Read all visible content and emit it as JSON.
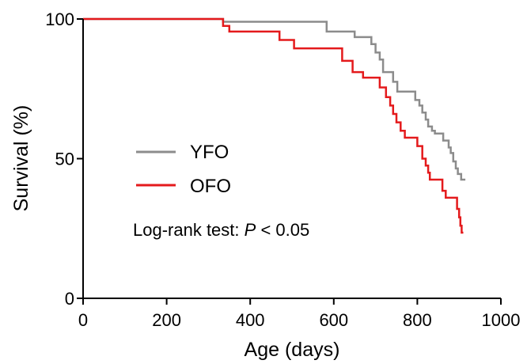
{
  "chart_data": {
    "type": "line",
    "step": true,
    "xlabel": "Age (days)",
    "ylabel": "Survival (%)",
    "xlim": [
      0,
      1000
    ],
    "ylim": [
      0,
      100
    ],
    "x_ticks": [
      0,
      200,
      400,
      600,
      800,
      1000
    ],
    "y_ticks": [
      0,
      50,
      100
    ],
    "x_tick_labels": [
      "0",
      "200",
      "400",
      "600",
      "800",
      "1000"
    ],
    "y_tick_labels": [
      "0",
      "50",
      "100"
    ],
    "grid": false,
    "legend_position": "middle-left",
    "annotation": {
      "prefix": "Log-rank test: ",
      "italic": "P",
      "suffix": " < 0.05"
    },
    "series": [
      {
        "name": "YFO",
        "color": "#8c8c8c",
        "points": [
          [
            0,
            100
          ],
          [
            335,
            100
          ],
          [
            335,
            99
          ],
          [
            583,
            99
          ],
          [
            583,
            95.5
          ],
          [
            650,
            95.5
          ],
          [
            650,
            93.5
          ],
          [
            690,
            93.5
          ],
          [
            690,
            91
          ],
          [
            700,
            91
          ],
          [
            700,
            88
          ],
          [
            710,
            88
          ],
          [
            710,
            85.5
          ],
          [
            718,
            85.5
          ],
          [
            718,
            81
          ],
          [
            742,
            81
          ],
          [
            742,
            77.5
          ],
          [
            752,
            77.5
          ],
          [
            752,
            74
          ],
          [
            795,
            74
          ],
          [
            795,
            71
          ],
          [
            805,
            71
          ],
          [
            805,
            69
          ],
          [
            812,
            69
          ],
          [
            812,
            66.5
          ],
          [
            820,
            66.5
          ],
          [
            820,
            64
          ],
          [
            826,
            64
          ],
          [
            826,
            61.5
          ],
          [
            835,
            61.5
          ],
          [
            835,
            60
          ],
          [
            842,
            60
          ],
          [
            842,
            59
          ],
          [
            862,
            59
          ],
          [
            862,
            56.5
          ],
          [
            875,
            56.5
          ],
          [
            875,
            54
          ],
          [
            880,
            54
          ],
          [
            880,
            52
          ],
          [
            886,
            52
          ],
          [
            886,
            49
          ],
          [
            892,
            49
          ],
          [
            892,
            46.5
          ],
          [
            897,
            46.5
          ],
          [
            897,
            44.5
          ],
          [
            905,
            44.5
          ],
          [
            905,
            42.5
          ],
          [
            915,
            42.5
          ]
        ]
      },
      {
        "name": "OFO",
        "color": "#e41a1c",
        "points": [
          [
            0,
            100
          ],
          [
            335,
            100
          ],
          [
            335,
            97.5
          ],
          [
            350,
            97.5
          ],
          [
            350,
            95.5
          ],
          [
            470,
            95.5
          ],
          [
            470,
            92.5
          ],
          [
            505,
            92.5
          ],
          [
            505,
            89.5
          ],
          [
            620,
            89.5
          ],
          [
            620,
            85
          ],
          [
            645,
            85
          ],
          [
            645,
            81
          ],
          [
            670,
            81
          ],
          [
            670,
            79
          ],
          [
            710,
            79
          ],
          [
            710,
            75.5
          ],
          [
            725,
            75.5
          ],
          [
            725,
            72
          ],
          [
            735,
            72
          ],
          [
            735,
            69
          ],
          [
            742,
            69
          ],
          [
            742,
            66
          ],
          [
            750,
            66
          ],
          [
            750,
            63
          ],
          [
            760,
            63
          ],
          [
            760,
            60
          ],
          [
            770,
            60
          ],
          [
            770,
            57.5
          ],
          [
            800,
            57.5
          ],
          [
            800,
            54.5
          ],
          [
            812,
            54.5
          ],
          [
            812,
            50
          ],
          [
            820,
            50
          ],
          [
            820,
            47.5
          ],
          [
            826,
            47.5
          ],
          [
            826,
            45
          ],
          [
            830,
            45
          ],
          [
            830,
            42.5
          ],
          [
            860,
            42.5
          ],
          [
            860,
            38.5
          ],
          [
            868,
            38.5
          ],
          [
            868,
            36
          ],
          [
            895,
            36
          ],
          [
            895,
            32
          ],
          [
            900,
            32
          ],
          [
            900,
            29
          ],
          [
            903,
            29
          ],
          [
            903,
            26
          ],
          [
            906,
            26
          ],
          [
            906,
            23.5
          ],
          [
            910,
            23.5
          ]
        ]
      }
    ]
  }
}
